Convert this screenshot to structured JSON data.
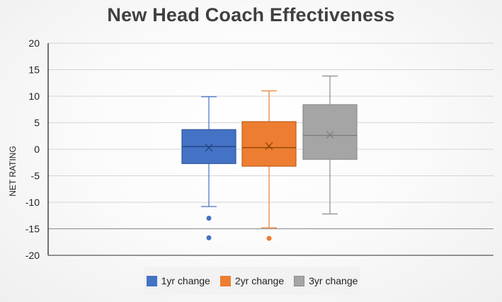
{
  "chart_data": {
    "type": "box",
    "title": "New Head Coach Effectiveness",
    "xlabel": "",
    "ylabel": "NET RATING",
    "ylim": [
      -20,
      20
    ],
    "yticks": [
      20,
      15,
      10,
      5,
      0,
      -5,
      -10,
      -15,
      -20
    ],
    "grid": true,
    "legend_position": "bottom",
    "series": [
      {
        "name": "1yr change",
        "color": "#4472C4",
        "whisker_low": -10.8,
        "q1": -2.7,
        "median": 0.5,
        "mean": 0.3,
        "q3": 3.7,
        "whisker_high": 9.9,
        "outliers": [
          -13.0,
          -16.7
        ]
      },
      {
        "name": "2yr change",
        "color": "#ED7D31",
        "whisker_low": -14.8,
        "q1": -3.2,
        "median": 0.3,
        "mean": 0.6,
        "q3": 5.2,
        "whisker_high": 11.0,
        "outliers": [
          -16.8
        ]
      },
      {
        "name": "3yr change",
        "color": "#A5A5A5",
        "whisker_low": -12.2,
        "q1": -1.9,
        "median": 2.6,
        "mean": 2.7,
        "q3": 8.4,
        "whisker_high": 13.8,
        "outliers": []
      }
    ]
  }
}
